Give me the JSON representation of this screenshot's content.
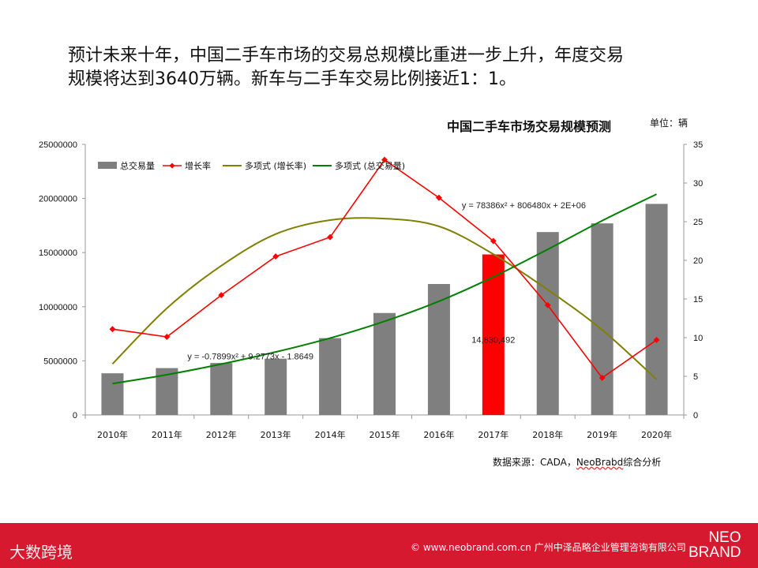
{
  "headline": {
    "line1": "预计未来十年，中国二手车市场的交易总规模比重进一步上升，年度交易",
    "line2": "规模将达到3640万辆。新车与二手车交易比例接近1：1。"
  },
  "chart_data": {
    "type": "bar",
    "title": "中国二手车市场交易规模预测",
    "unit": "单位：辆",
    "categories": [
      "2010年",
      "2011年",
      "2012年",
      "2013年",
      "2014年",
      "2015年",
      "2016年",
      "2017年",
      "2018年",
      "2019年",
      "2020年"
    ],
    "series": [
      {
        "name": "总交易量",
        "type": "bar",
        "axis": "left",
        "values": [
          3850000,
          4330000,
          4800000,
          5200000,
          7100000,
          9420000,
          12100000,
          14830492,
          16900000,
          17700000,
          19500000
        ]
      },
      {
        "name": "增长率",
        "type": "line",
        "axis": "right",
        "values": [
          11.1,
          10.1,
          15.5,
          20.5,
          23.0,
          33.0,
          28.1,
          22.5,
          14.2,
          4.8,
          9.7
        ]
      },
      {
        "name": "多项式 (增长率)",
        "type": "trend",
        "axis": "right",
        "values": [
          6.6,
          13.8,
          19.3,
          23.4,
          25.2,
          25.4,
          24.4,
          20.8,
          16.2,
          11.0,
          4.6
        ]
      },
      {
        "name": "多项式 (总交易量)",
        "type": "trend",
        "axis": "left",
        "values": [
          2900000,
          3720000,
          4700000,
          5820000,
          7100000,
          8650000,
          10500000,
          12750000,
          15300000,
          17950000,
          20400000
        ]
      }
    ],
    "highlight": {
      "index": 7,
      "label": "14,830,492",
      "color": "#ff0000"
    },
    "ylim_left": [
      0,
      25000000
    ],
    "yticks_left": [
      "0",
      "5000000",
      "10000000",
      "15000000",
      "20000000",
      "25000000"
    ],
    "ylim_right": [
      0,
      35
    ],
    "yticks_right": [
      "0",
      "5",
      "10",
      "15",
      "20",
      "25",
      "30",
      "35"
    ],
    "equations": {
      "eq1": "y = -0.7899x² + 9.2773x - 1.8649",
      "eq2": "y = 78386x² + 806480x + 2E+06"
    },
    "colors": {
      "bar": "#7f7f7f",
      "highlight": "#ff0000",
      "growth": "#ff0000",
      "trend_growth": "#808000",
      "trend_total": "#008000"
    },
    "legend_position": "top-left"
  },
  "source": {
    "prefix": "数据来源：CADA，",
    "brand": "NeoBrabd",
    "suffix": "综合分析"
  },
  "footer": {
    "left_logo": "大数跨境",
    "copyright": "© www.neobrand.com.cn  广州中泽品略企业管理咨询有限公司",
    "brand_line1": "NEO",
    "brand_line2": "BRAND"
  }
}
